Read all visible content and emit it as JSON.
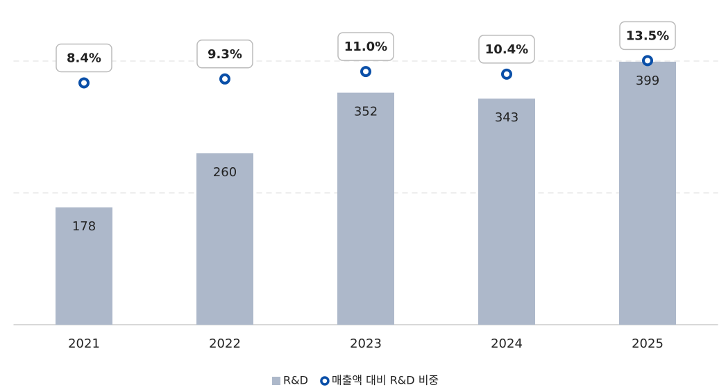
{
  "chart_data": {
    "type": "bar",
    "categories": [
      "2021",
      "2022",
      "2023",
      "2024",
      "2025"
    ],
    "series": [
      {
        "name": "R&D",
        "color": "#adb8ca",
        "values": [
          178,
          260,
          352,
          343,
          399
        ]
      },
      {
        "name": "매출액 대비 R&D 비중",
        "color": "#0a4fa8",
        "axis": "y2",
        "values": [
          8.4,
          9.3,
          11.0,
          10.4,
          13.5
        ],
        "value_labels": [
          "8.4%",
          "9.3%",
          "11.0%",
          "10.4%",
          "13.5%"
        ]
      }
    ],
    "ylim": [
      0,
      400
    ],
    "yticks": [
      0,
      200,
      400
    ],
    "y2lim": [
      -47,
      13.4
    ],
    "grid": true,
    "legend": "bottom"
  }
}
